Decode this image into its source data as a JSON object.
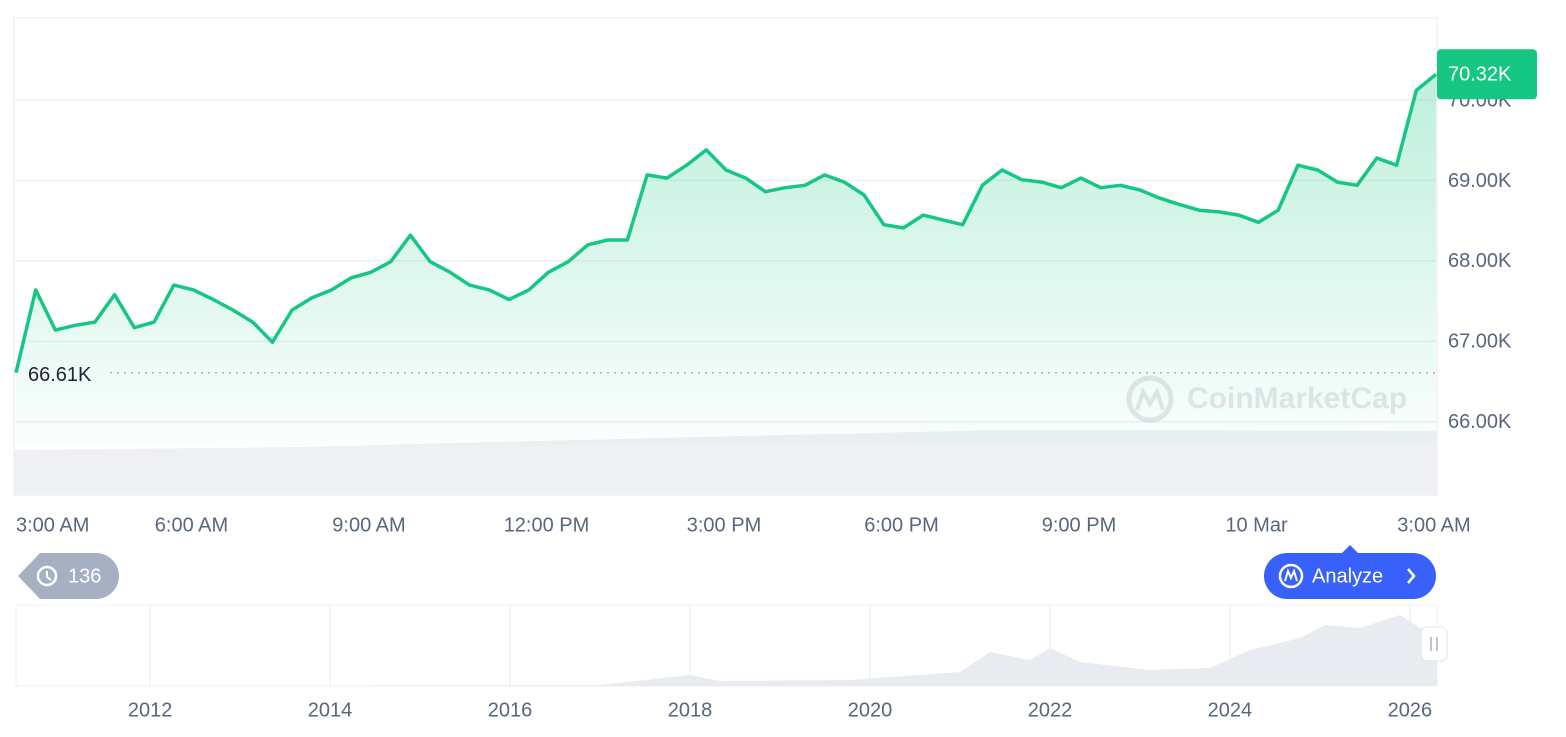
{
  "chart_data": {
    "type": "line",
    "color": "#16c784",
    "grid": true,
    "categories": [
      "3:00 AM",
      null,
      null,
      null,
      null,
      null,
      null,
      null,
      null,
      "6:00 AM",
      null,
      null,
      null,
      null,
      null,
      null,
      null,
      null,
      "9:00 AM",
      null,
      null,
      null,
      null,
      null,
      null,
      null,
      null,
      "12:00 PM",
      null,
      null,
      null,
      null,
      null,
      null,
      null,
      null,
      "3:00 PM",
      null,
      null,
      null,
      null,
      null,
      null,
      null,
      null,
      "6:00 PM",
      null,
      null,
      null,
      null,
      null,
      null,
      null,
      null,
      "9:00 PM",
      null,
      null,
      null,
      null,
      null,
      null,
      null,
      null,
      "10 Mar",
      null,
      null,
      null,
      null,
      null,
      null,
      null,
      null,
      "3:00 AM"
    ],
    "values": [
      66610,
      67640,
      67140,
      67200,
      67240,
      67580,
      67170,
      67240,
      67700,
      67640,
      67520,
      67390,
      67240,
      66990,
      67390,
      67540,
      67640,
      67790,
      67860,
      67990,
      68320,
      67990,
      67860,
      67700,
      67640,
      67520,
      67640,
      67860,
      67990,
      68200,
      68260,
      68260,
      69070,
      69030,
      69190,
      69380,
      69130,
      69030,
      68860,
      68910,
      68940,
      69070,
      68980,
      68820,
      68450,
      68410,
      68570,
      68510,
      68450,
      68940,
      69130,
      69010,
      68980,
      68910,
      69030,
      68910,
      68940,
      68880,
      68780,
      68700,
      68630,
      68610,
      68570,
      68480,
      68630,
      69190,
      69130,
      68980,
      68940,
      69280,
      69190,
      70120,
      70320
    ],
    "value_labels": [
      "66.61K",
      null,
      null,
      null,
      null,
      null,
      null,
      null,
      null,
      null,
      null,
      null,
      null,
      null,
      null,
      null,
      null,
      null,
      null,
      null,
      null,
      null,
      null,
      null,
      null,
      null,
      null,
      null,
      null,
      null,
      null,
      null,
      null,
      null,
      null,
      null,
      null,
      null,
      null,
      null,
      null,
      null,
      null,
      null,
      null,
      null,
      null,
      null,
      null,
      null,
      null,
      null,
      null,
      null,
      null,
      null,
      null,
      null,
      null,
      null,
      null,
      null,
      null,
      null,
      null,
      null,
      null,
      null,
      null,
      null,
      null,
      null,
      "70.32K"
    ],
    "ylim": [
      65090,
      71020
    ],
    "yticks": [
      {
        "value": 66000,
        "label": "66.00K"
      },
      {
        "value": 67000,
        "label": "67.00K"
      },
      {
        "value": 68000,
        "label": "68.00K"
      },
      {
        "value": 69000,
        "label": "69.00K"
      },
      {
        "value": 70000,
        "label": "70.00K"
      }
    ],
    "navigator": {
      "xlim": [
        2010.51,
        2026.29
      ],
      "xticks": [
        2012,
        2014,
        2016,
        2018,
        2020,
        2022,
        2024,
        2026
      ]
    }
  },
  "ui": {
    "history_count": 136,
    "analyze_button": "Analyze",
    "watermark": "CoinMarketCap"
  }
}
